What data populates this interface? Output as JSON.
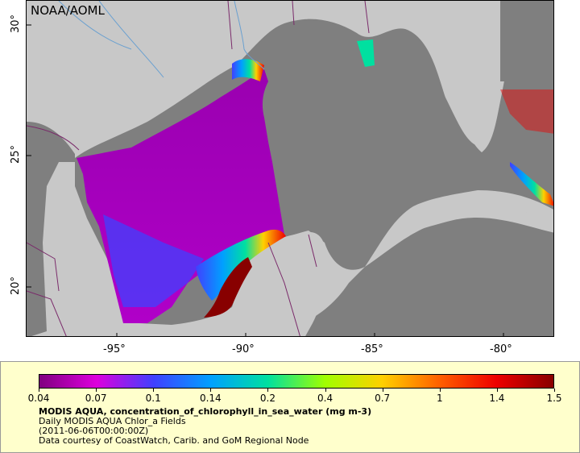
{
  "watermark": "NOAA/AOML",
  "axes": {
    "lat_ticks": [
      {
        "label": "30°",
        "lat": 30
      },
      {
        "label": "25°",
        "lat": 25
      },
      {
        "label": "20°",
        "lat": 20
      }
    ],
    "lon_ticks": [
      {
        "label": "-95°",
        "lon": -95
      },
      {
        "label": "-90°",
        "lon": -90
      },
      {
        "label": "-85°",
        "lon": -85
      },
      {
        "label": "-80°",
        "lon": -80
      }
    ],
    "lat_range": [
      18,
      31
    ],
    "lon_range": [
      -98,
      -78
    ]
  },
  "legend": {
    "ticks": [
      "0.04",
      "0.07",
      "0.1",
      "0.14",
      "0.2",
      "0.4",
      "0.7",
      "1",
      "1.4",
      "1.5"
    ],
    "colors": [
      "#800080",
      "#dd00dd",
      "#4040ff",
      "#00a0ff",
      "#00e0a0",
      "#a0ff00",
      "#ffd000",
      "#ff6000",
      "#ee0000",
      "#880000"
    ],
    "title": "MODIS AQUA, concentration_of_chlorophyll_in_sea_water (mg m-3)",
    "line2": "Daily MODIS AQUA Chlor_a Fields",
    "line3": "(2011-06-06T00:00:00Z)",
    "line4": "Data courtesy of CoastWatch, Carib. and GoM Regional Node"
  },
  "colors": {
    "land": "#c8c8c8",
    "ocean_nodata": "#7f7f7f",
    "border": "#7a2a6a",
    "river": "#6aa0d0",
    "legend_bg": "#ffffcc"
  }
}
